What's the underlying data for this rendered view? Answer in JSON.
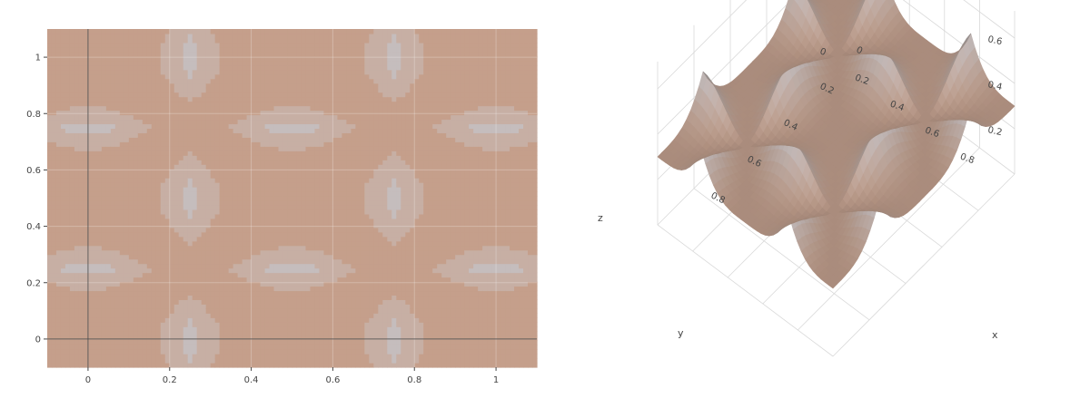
{
  "chart_data": [
    {
      "type": "contour",
      "function": "mean of cos^2(2*pi*x) and cos^2(2*pi*y)-like periodic surface",
      "x_ticks": [
        0,
        0.2,
        0.4,
        0.6,
        0.8,
        1
      ],
      "y_ticks": [
        0,
        0.2,
        0.4,
        0.6,
        0.8,
        1
      ],
      "x_tick_labels": [
        "0",
        "0.2",
        "0.4",
        "0.6",
        "0.8",
        "1"
      ],
      "y_tick_labels": [
        "0",
        "0.2",
        "0.4",
        "0.6",
        "0.8",
        "1"
      ],
      "xlim": [
        -0.1,
        1.1
      ],
      "ylim": [
        -0.1,
        1.1
      ],
      "z_range": [
        0,
        0.7
      ],
      "colorscale": [
        "#c2d9f0",
        "#c8a897",
        "#b26645"
      ],
      "grid": true,
      "zero_lines": true
    },
    {
      "type": "surface",
      "xlabel": "x",
      "ylabel": "y",
      "zlabel": "z",
      "x_tick_labels": [
        "0",
        "0.2",
        "0.4",
        "0.6",
        "0.8"
      ],
      "y_tick_labels": [
        "0",
        "0.2",
        "0.4",
        "0.6",
        "0.8"
      ],
      "z_tick_labels": [
        "0.2",
        "0.4",
        "0.6"
      ],
      "colorscale": [
        "#c2d9f0",
        "#c8a897",
        "#b26645"
      ]
    }
  ]
}
